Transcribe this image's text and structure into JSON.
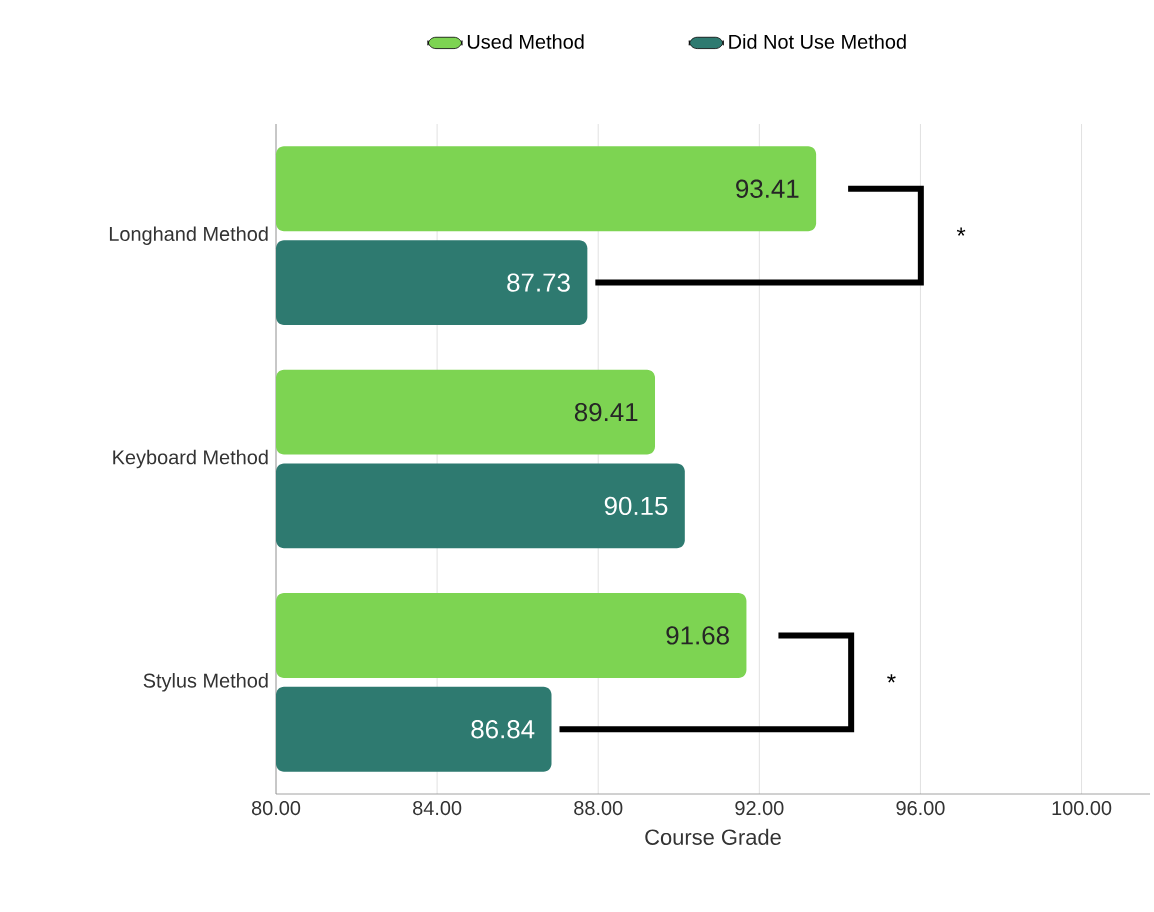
{
  "chart_data": {
    "type": "bar",
    "orientation": "horizontal",
    "xlabel": "Course Grade",
    "categories": [
      "Longhand Method",
      "Keyboard Method",
      "Stylus Method"
    ],
    "series": [
      {
        "name": "Used Method",
        "color": "#7dd452",
        "values": [
          93.41,
          89.41,
          91.68
        ]
      },
      {
        "name": "Did Not Use Method",
        "color": "#2e7a70",
        "values": [
          87.73,
          90.15,
          86.84
        ]
      }
    ],
    "xlim": [
      80,
      101.7
    ],
    "xticks": [
      {
        "value": 80,
        "label": "80.00"
      },
      {
        "value": 84,
        "label": "84.00"
      },
      {
        "value": 88,
        "label": "88.00"
      },
      {
        "value": 92,
        "label": "92.00"
      },
      {
        "value": 96,
        "label": "96.00"
      },
      {
        "value": 100,
        "label": "100.00"
      }
    ],
    "grid": "x",
    "legend": "top",
    "data_labels": true,
    "annotations": [
      "*",
      "*"
    ]
  }
}
